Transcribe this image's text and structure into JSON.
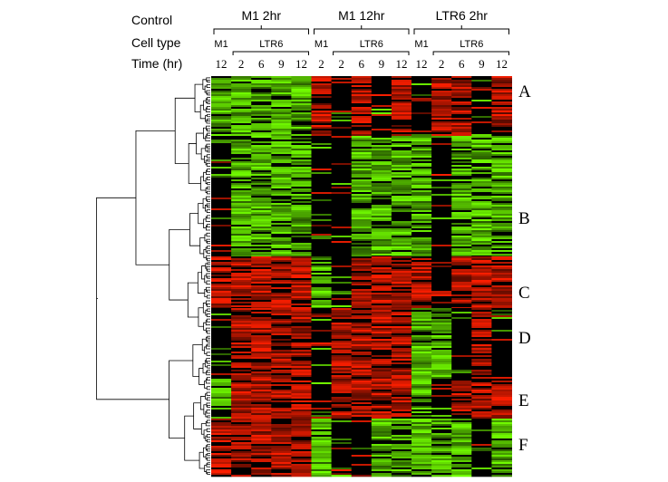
{
  "header": {
    "row_labels": [
      "Control",
      "Cell type",
      "Time (hr)"
    ],
    "groups": [
      {
        "control": "M1 2hr",
        "cell_types": [
          "M1",
          "LTR6"
        ],
        "times": [
          "12",
          "2",
          "6",
          "9",
          "12"
        ]
      },
      {
        "control": "M1 12hr",
        "cell_types": [
          "M1",
          "LTR6"
        ],
        "times": [
          "2",
          "2",
          "6",
          "9",
          "12"
        ]
      },
      {
        "control": "LTR6 2hr",
        "cell_types": [
          "M1",
          "LTR6"
        ],
        "times": [
          "12",
          "2",
          "6",
          "9",
          "12"
        ]
      }
    ]
  },
  "clusters": [
    "A",
    "B",
    "C",
    "D",
    "E",
    "F"
  ]
}
